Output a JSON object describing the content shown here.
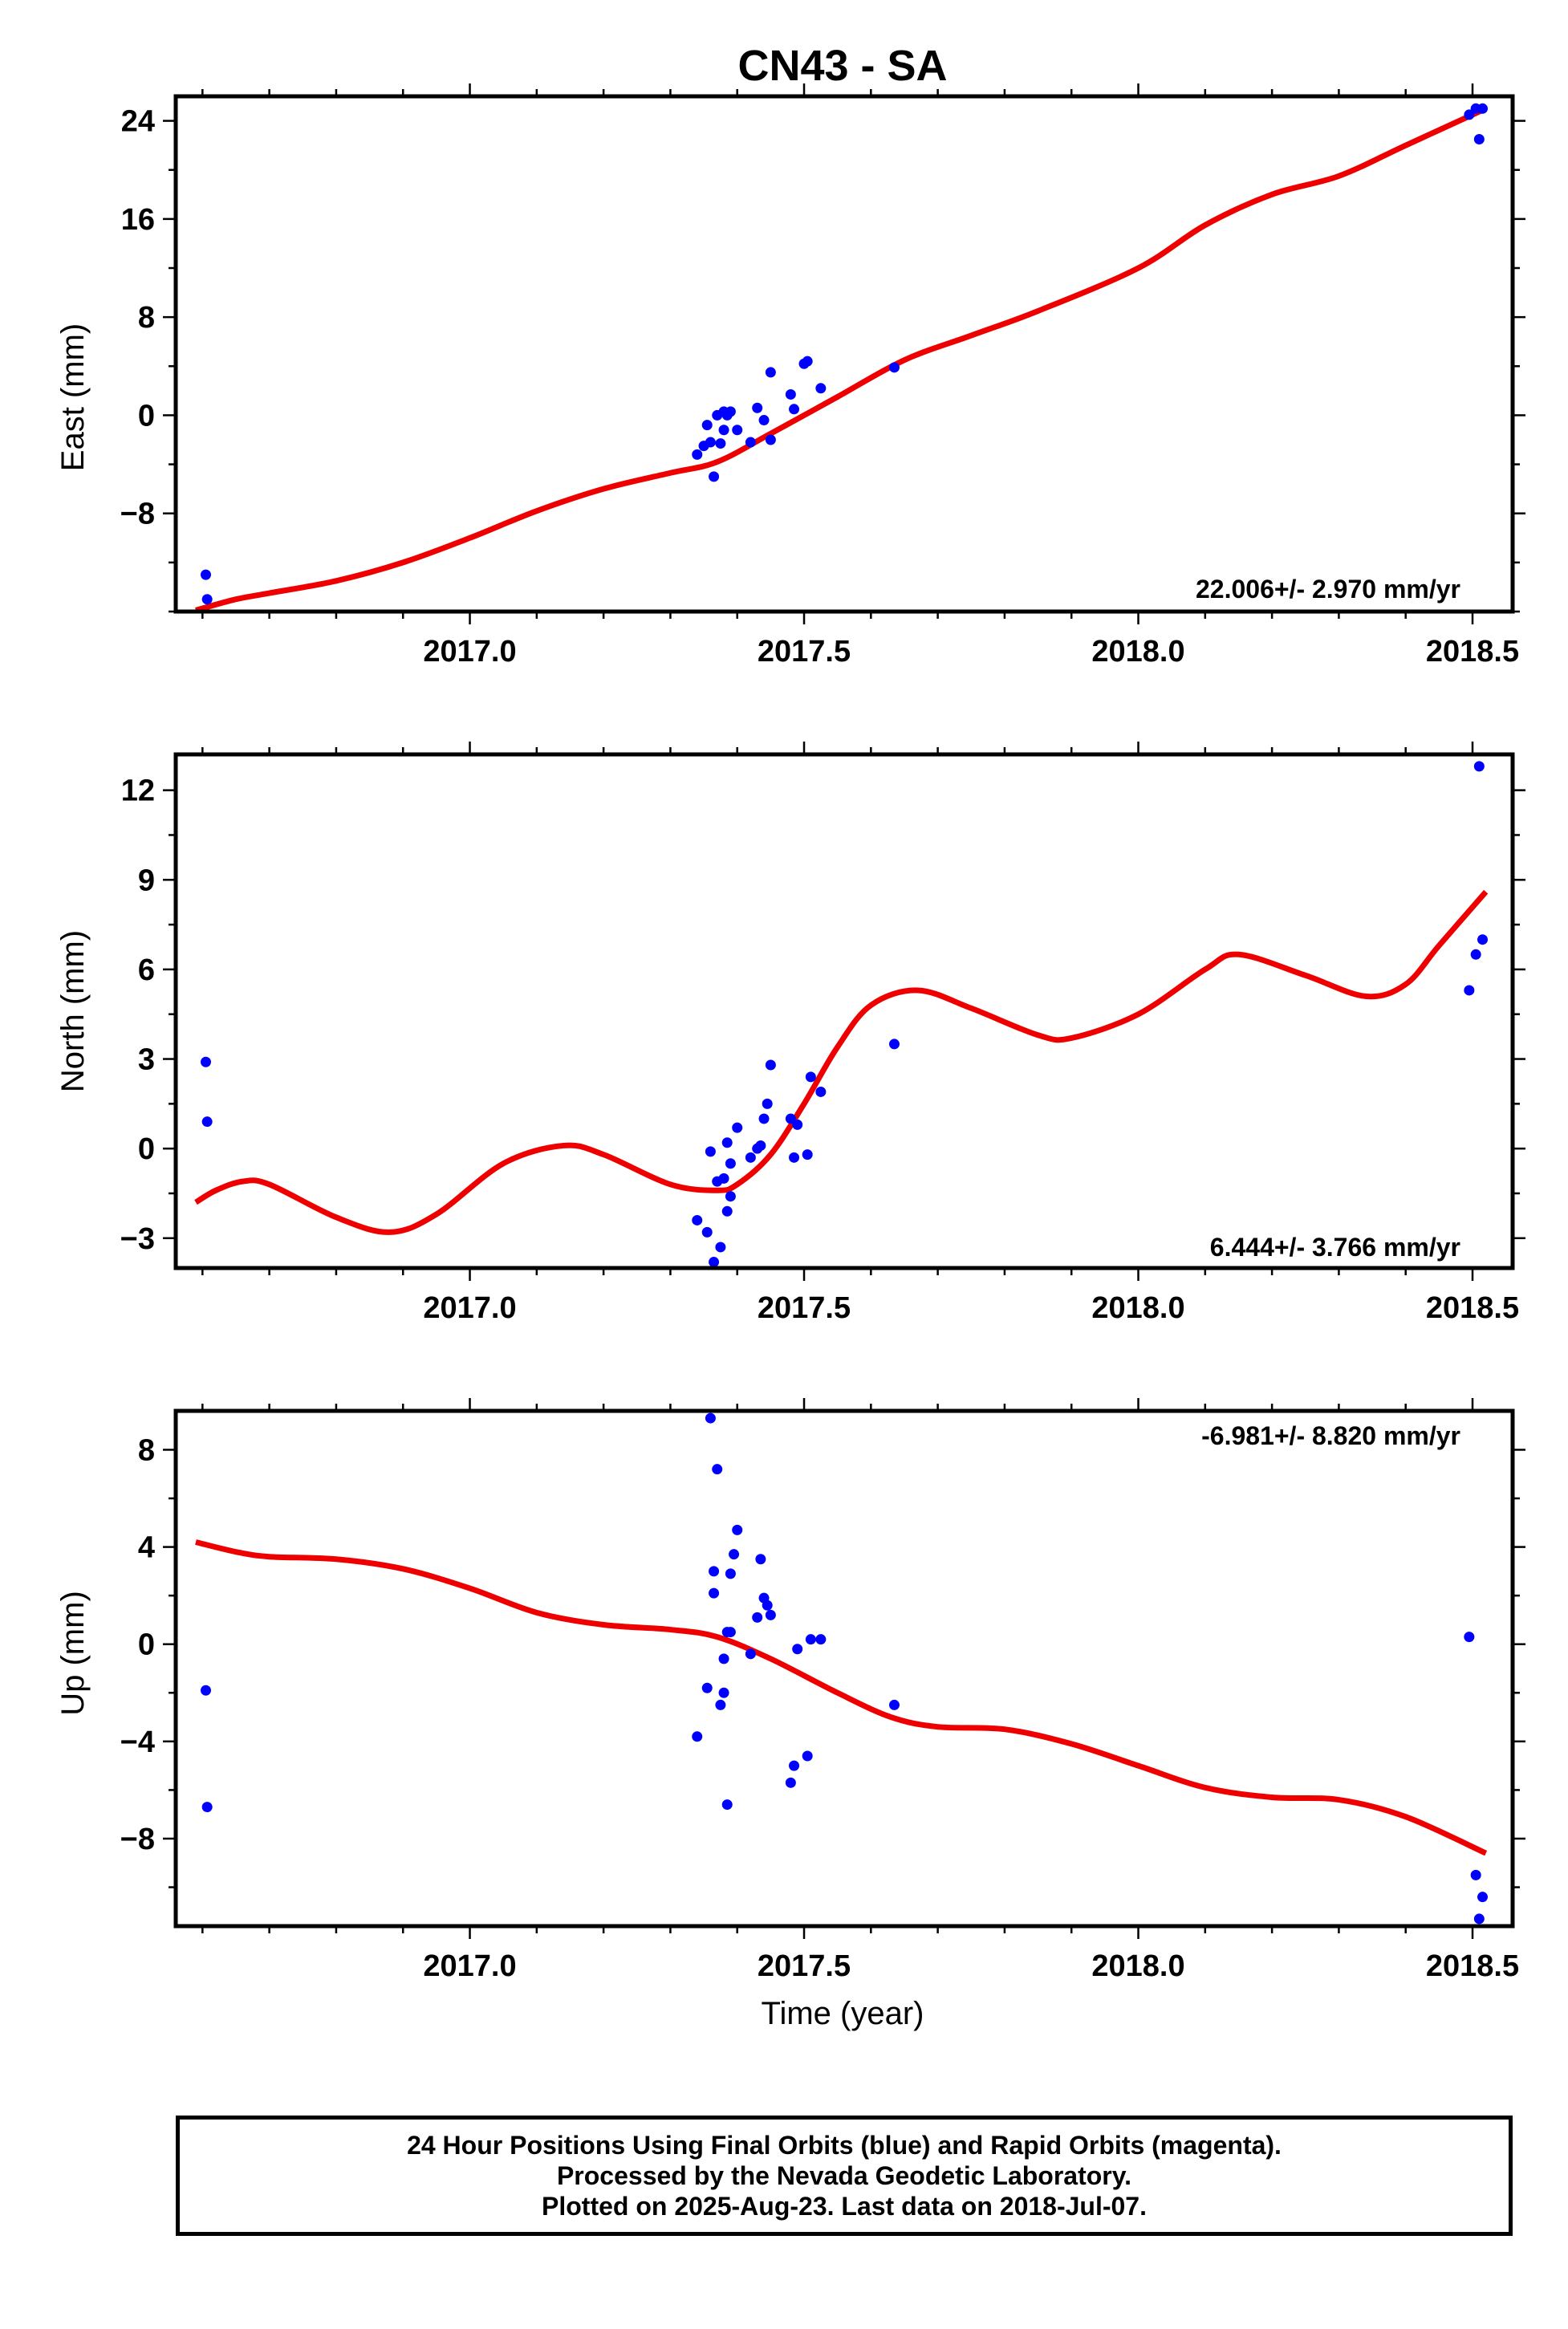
{
  "title": "CN43 - SA",
  "colors": {
    "final_orbits": "#0000ff",
    "model_fit": "#ee0000",
    "axes": "#000000"
  },
  "chart_data": [
    {
      "type": "scatter",
      "component": "East",
      "ylabel": "East (mm)",
      "xlim": [
        2016.56,
        2018.56
      ],
      "ylim": [
        -16,
        26
      ],
      "yticks": [
        -8,
        0,
        8,
        16,
        24
      ],
      "xticks": [
        2017.0,
        2017.5,
        2018.0,
        2018.5
      ],
      "xtick_labels": [
        "2017.0",
        "2017.5",
        "2018.0",
        "2018.5"
      ],
      "rate_label": "22.006+/- 2.970 mm/yr",
      "series": [
        {
          "kind": "points",
          "values": [
            [
              2016.605,
              -13
            ],
            [
              2016.607,
              -15
            ],
            [
              2017.34,
              -3.2
            ],
            [
              2017.35,
              -2.5
            ],
            [
              2017.355,
              -0.8
            ],
            [
              2017.36,
              -2.2
            ],
            [
              2017.365,
              -5
            ],
            [
              2017.37,
              0
            ],
            [
              2017.375,
              -2.3
            ],
            [
              2017.38,
              -1.2
            ],
            [
              2017.38,
              0.3
            ],
            [
              2017.385,
              0
            ],
            [
              2017.39,
              0.3
            ],
            [
              2017.4,
              -1.2
            ],
            [
              2017.42,
              -2.2
            ],
            [
              2017.43,
              0.6
            ],
            [
              2017.44,
              -0.4
            ],
            [
              2017.45,
              -2
            ],
            [
              2017.45,
              3.5
            ],
            [
              2017.48,
              1.7
            ],
            [
              2017.485,
              0.5
            ],
            [
              2017.5,
              4.2
            ],
            [
              2017.505,
              4.4
            ],
            [
              2017.525,
              2.2
            ],
            [
              2017.635,
              3.9
            ],
            [
              2018.495,
              24.5
            ],
            [
              2018.505,
              25
            ],
            [
              2018.51,
              22.5
            ],
            [
              2018.515,
              25
            ]
          ]
        },
        {
          "kind": "fit",
          "values": [
            [
              2016.59,
              -15.9
            ],
            [
              2016.65,
              -15
            ],
            [
              2016.7,
              -14.5
            ],
            [
              2016.8,
              -13.5
            ],
            [
              2016.9,
              -12
            ],
            [
              2017.0,
              -10
            ],
            [
              2017.1,
              -7.8
            ],
            [
              2017.2,
              -6
            ],
            [
              2017.3,
              -4.7
            ],
            [
              2017.37,
              -3.8
            ],
            [
              2017.45,
              -1.5
            ],
            [
              2017.55,
              1.5
            ],
            [
              2017.65,
              4.5
            ],
            [
              2017.75,
              6.5
            ],
            [
              2017.85,
              8.5
            ],
            [
              2018.0,
              12
            ],
            [
              2018.1,
              15.5
            ],
            [
              2018.2,
              18
            ],
            [
              2018.3,
              19.5
            ],
            [
              2018.4,
              22
            ],
            [
              2018.52,
              25
            ]
          ]
        }
      ]
    },
    {
      "type": "scatter",
      "component": "North",
      "ylabel": "North (mm)",
      "xlim": [
        2016.56,
        2018.56
      ],
      "ylim": [
        -4,
        13.2
      ],
      "yticks": [
        -3,
        0,
        3,
        6,
        9,
        12
      ],
      "xticks": [
        2017.0,
        2017.5,
        2018.0,
        2018.5
      ],
      "xtick_labels": [
        "2017.0",
        "2017.5",
        "2018.0",
        "2018.5"
      ],
      "rate_label": "6.444+/- 3.766 mm/yr",
      "series": [
        {
          "kind": "points",
          "values": [
            [
              2016.605,
              2.9
            ],
            [
              2016.607,
              0.9
            ],
            [
              2017.34,
              -2.4
            ],
            [
              2017.355,
              -2.8
            ],
            [
              2017.36,
              -0.1
            ],
            [
              2017.365,
              -3.8
            ],
            [
              2017.37,
              -1.1
            ],
            [
              2017.375,
              -3.3
            ],
            [
              2017.38,
              -1
            ],
            [
              2017.385,
              -2.1
            ],
            [
              2017.385,
              0.2
            ],
            [
              2017.39,
              -1.6
            ],
            [
              2017.39,
              -0.5
            ],
            [
              2017.4,
              0.7
            ],
            [
              2017.42,
              -0.3
            ],
            [
              2017.43,
              0
            ],
            [
              2017.435,
              0.1
            ],
            [
              2017.44,
              1
            ],
            [
              2017.445,
              1.5
            ],
            [
              2017.45,
              2.8
            ],
            [
              2017.48,
              1
            ],
            [
              2017.485,
              -0.3
            ],
            [
              2017.49,
              0.8
            ],
            [
              2017.505,
              -0.2
            ],
            [
              2017.51,
              2.4
            ],
            [
              2017.525,
              1.9
            ],
            [
              2017.635,
              3.5
            ],
            [
              2018.495,
              5.3
            ],
            [
              2018.505,
              6.5
            ],
            [
              2018.51,
              12.8
            ],
            [
              2018.515,
              7
            ]
          ]
        },
        {
          "kind": "fit",
          "values": [
            [
              2016.59,
              -1.8
            ],
            [
              2016.62,
              -1.4
            ],
            [
              2016.66,
              -1.1
            ],
            [
              2016.7,
              -1.2
            ],
            [
              2016.8,
              -2.3
            ],
            [
              2016.88,
              -2.8
            ],
            [
              2016.95,
              -2.2
            ],
            [
              2017.05,
              -0.5
            ],
            [
              2017.14,
              0.1
            ],
            [
              2017.2,
              -0.2
            ],
            [
              2017.3,
              -1.2
            ],
            [
              2017.37,
              -1.4
            ],
            [
              2017.4,
              -1.2
            ],
            [
              2017.45,
              -0.2
            ],
            [
              2017.5,
              1.5
            ],
            [
              2017.55,
              3.4
            ],
            [
              2017.6,
              4.8
            ],
            [
              2017.67,
              5.3
            ],
            [
              2017.75,
              4.7
            ],
            [
              2017.85,
              3.8
            ],
            [
              2017.9,
              3.7
            ],
            [
              2018.0,
              4.5
            ],
            [
              2018.1,
              6
            ],
            [
              2018.15,
              6.5
            ],
            [
              2018.25,
              5.8
            ],
            [
              2018.34,
              5.1
            ],
            [
              2018.4,
              5.5
            ],
            [
              2018.45,
              6.8
            ],
            [
              2018.52,
              8.6
            ]
          ]
        }
      ]
    },
    {
      "type": "scatter",
      "component": "Up",
      "ylabel": "Up (mm)",
      "xlabel": "Time (year)",
      "xlim": [
        2016.56,
        2018.56
      ],
      "ylim": [
        -11.6,
        9.6
      ],
      "yticks": [
        -8,
        -4,
        0,
        4,
        8
      ],
      "xticks": [
        2017.0,
        2017.5,
        2018.0,
        2018.5
      ],
      "xtick_labels": [
        "2017.0",
        "2017.5",
        "2018.0",
        "2018.5"
      ],
      "rate_label": "-6.981+/- 8.820 mm/yr",
      "series": [
        {
          "kind": "points",
          "values": [
            [
              2016.605,
              -1.9
            ],
            [
              2016.607,
              -6.7
            ],
            [
              2017.34,
              -3.8
            ],
            [
              2017.355,
              -1.8
            ],
            [
              2017.36,
              9.3
            ],
            [
              2017.365,
              3
            ],
            [
              2017.365,
              2.1
            ],
            [
              2017.37,
              7.2
            ],
            [
              2017.375,
              -2.5
            ],
            [
              2017.38,
              -2
            ],
            [
              2017.38,
              -0.6
            ],
            [
              2017.385,
              0.5
            ],
            [
              2017.385,
              -6.6
            ],
            [
              2017.39,
              0.5
            ],
            [
              2017.39,
              2.9
            ],
            [
              2017.395,
              3.7
            ],
            [
              2017.4,
              4.7
            ],
            [
              2017.42,
              -0.4
            ],
            [
              2017.43,
              1.1
            ],
            [
              2017.435,
              3.5
            ],
            [
              2017.44,
              1.9
            ],
            [
              2017.445,
              1.6
            ],
            [
              2017.45,
              1.2
            ],
            [
              2017.48,
              -5.7
            ],
            [
              2017.485,
              -5
            ],
            [
              2017.49,
              -0.2
            ],
            [
              2017.505,
              -4.6
            ],
            [
              2017.51,
              0.2
            ],
            [
              2017.525,
              0.2
            ],
            [
              2017.635,
              -2.5
            ],
            [
              2018.495,
              0.3
            ],
            [
              2018.505,
              -9.5
            ],
            [
              2018.51,
              -11.3
            ],
            [
              2018.515,
              -10.4
            ]
          ]
        },
        {
          "kind": "fit",
          "values": [
            [
              2016.59,
              4.2
            ],
            [
              2016.65,
              3.8
            ],
            [
              2016.7,
              3.6
            ],
            [
              2016.8,
              3.5
            ],
            [
              2016.9,
              3.1
            ],
            [
              2017.0,
              2.3
            ],
            [
              2017.1,
              1.3
            ],
            [
              2017.2,
              0.8
            ],
            [
              2017.3,
              0.6
            ],
            [
              2017.37,
              0.3
            ],
            [
              2017.45,
              -0.6
            ],
            [
              2017.55,
              -2
            ],
            [
              2017.63,
              -3
            ],
            [
              2017.7,
              -3.4
            ],
            [
              2017.8,
              -3.5
            ],
            [
              2017.9,
              -4.1
            ],
            [
              2018.0,
              -5
            ],
            [
              2018.1,
              -5.9
            ],
            [
              2018.2,
              -6.3
            ],
            [
              2018.3,
              -6.4
            ],
            [
              2018.4,
              -7.1
            ],
            [
              2018.52,
              -8.6
            ]
          ]
        }
      ]
    }
  ],
  "footer": {
    "line1": "24 Hour Positions Using Final Orbits (blue) and Rapid Orbits (magenta).",
    "line2": "Processed by the Nevada Geodetic Laboratory.",
    "line3": "Plotted on 2025-Aug-23. Last data on 2018-Jul-07."
  }
}
